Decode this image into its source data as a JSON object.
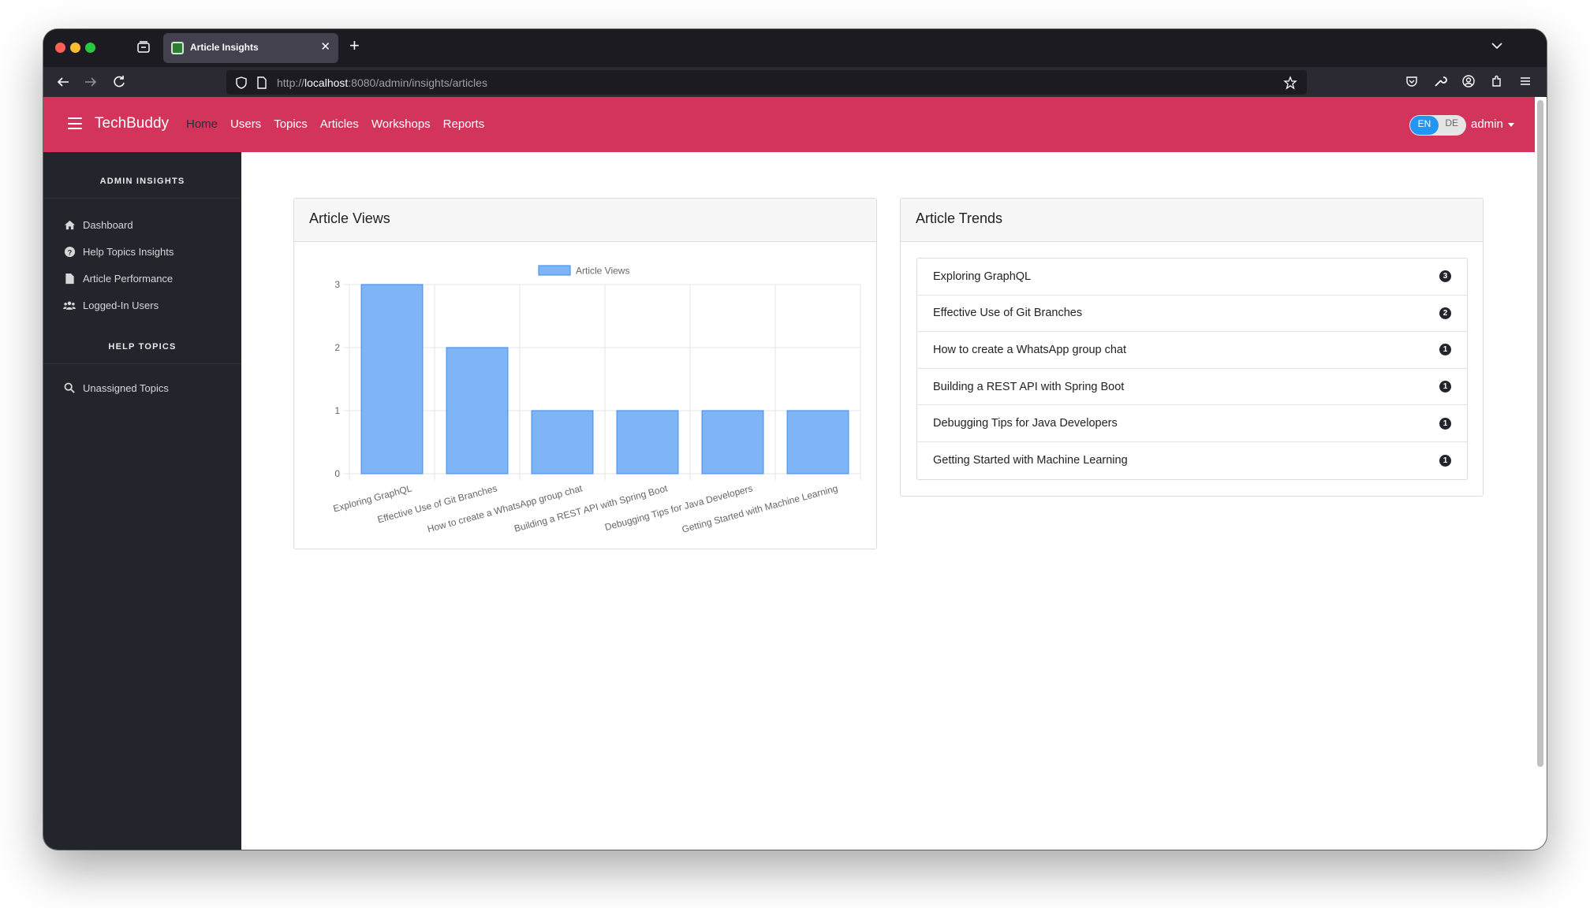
{
  "browser": {
    "tab_title": "Article Insights",
    "url_prefix": "http://",
    "url_host": "localhost",
    "url_rest": ":8080/admin/insights/articles"
  },
  "app": {
    "brand": "TechBuddy",
    "nav": [
      "Home",
      "Users",
      "Topics",
      "Articles",
      "Workshops",
      "Reports"
    ],
    "active_nav": "Home",
    "lang_en": "EN",
    "lang_de": "DE",
    "user": "admin",
    "brand_color": "#d3345b"
  },
  "sidebar": {
    "section_admin": "ADMIN INSIGHTS",
    "items": [
      {
        "label": "Dashboard",
        "icon": "home-icon"
      },
      {
        "label": "Help Topics Insights",
        "icon": "question-circle-icon"
      },
      {
        "label": "Article Performance",
        "icon": "file-icon"
      },
      {
        "label": "Logged-In Users",
        "icon": "users-icon"
      }
    ],
    "section_help": "HELP TOPICS",
    "help_items": [
      {
        "label": "Unassigned Topics",
        "icon": "search-icon"
      }
    ]
  },
  "chart_card": {
    "title": "Article Views"
  },
  "chart_data": {
    "type": "bar",
    "categories": [
      "Exploring GraphQL",
      "Effective Use of Git Branches",
      "How to create a WhatsApp group chat",
      "Building a REST API with Spring Boot",
      "Debugging Tips for Java Developers",
      "Getting Started with Machine Learning"
    ],
    "series": [
      {
        "name": "Article Views",
        "values": [
          3,
          2,
          1,
          1,
          1,
          1
        ]
      }
    ],
    "yticks": [
      "0",
      "1",
      "2",
      "3"
    ],
    "ylim": [
      0,
      3
    ],
    "grid": true,
    "legend": "top",
    "bar_color": "#7fb5f7",
    "bar_border": "#4e94ec"
  },
  "trends_card": {
    "title": "Article Trends",
    "items": [
      {
        "title": "Exploring GraphQL",
        "count": "3"
      },
      {
        "title": "Effective Use of Git Branches",
        "count": "2"
      },
      {
        "title": "How to create a WhatsApp group chat",
        "count": "1"
      },
      {
        "title": "Building a REST API with Spring Boot",
        "count": "1"
      },
      {
        "title": "Debugging Tips for Java Developers",
        "count": "1"
      },
      {
        "title": "Getting Started with Machine Learning",
        "count": "1"
      }
    ]
  }
}
